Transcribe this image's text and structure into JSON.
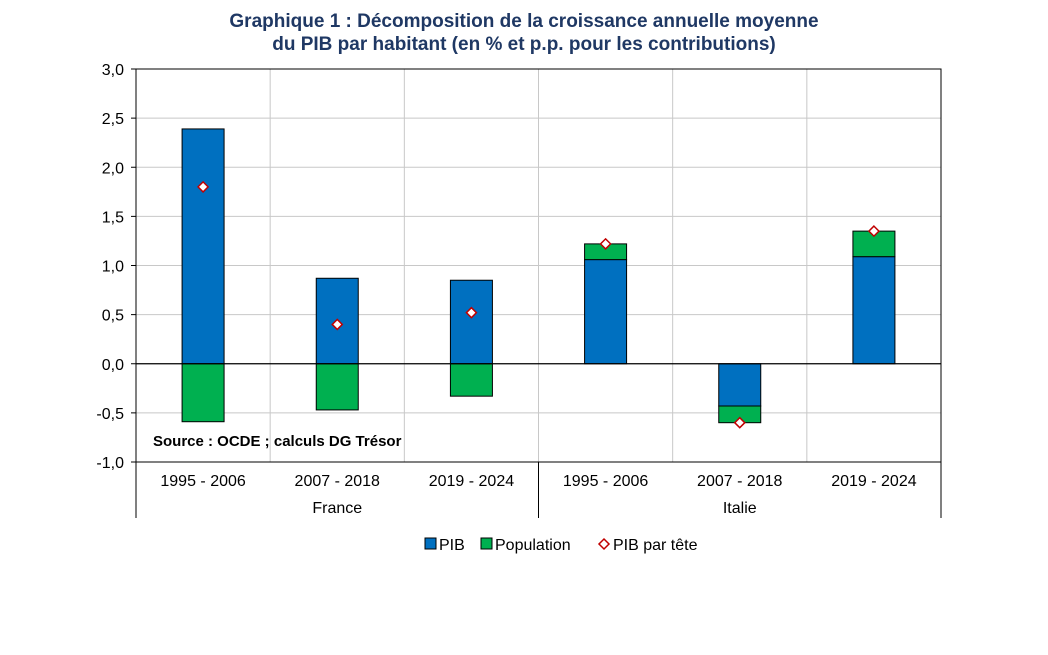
{
  "chart_data": {
    "type": "bar",
    "title_line1": "Graphique 1 : Décomposition de la croissance annuelle moyenne",
    "title_line2": "du PIB par habitant (en % et p.p. pour les contributions)",
    "groups": [
      {
        "name": "France",
        "categories": [
          "1995 - 2006",
          "2007 - 2018",
          "2019 - 2024"
        ]
      },
      {
        "name": "Italie",
        "categories": [
          "1995 - 2006",
          "2007 - 2018",
          "2019 - 2024"
        ]
      }
    ],
    "categories": [
      "1995 - 2006",
      "2007 - 2018",
      "2019 - 2024",
      "1995 - 2006",
      "2007 - 2018",
      "2019 - 2024"
    ],
    "series": [
      {
        "name": "PIB",
        "kind": "bar",
        "color": "#0070c0",
        "values": [
          2.39,
          0.87,
          0.85,
          1.06,
          -0.43,
          1.09
        ]
      },
      {
        "name": "Population",
        "kind": "bar",
        "color": "#00b050",
        "values": [
          -0.59,
          -0.47,
          -0.33,
          0.16,
          -0.17,
          0.26
        ]
      },
      {
        "name": "PIB par tête",
        "kind": "marker",
        "color": "#c00000",
        "values": [
          1.8,
          0.4,
          0.52,
          1.22,
          -0.6,
          1.35
        ]
      }
    ],
    "ylim": [
      -1.0,
      3.0
    ],
    "yticks": [
      -1.0,
      -0.5,
      0.0,
      0.5,
      1.0,
      1.5,
      2.0,
      2.5,
      3.0
    ],
    "ytick_labels": [
      "-1,0",
      "-0,5",
      "0,0",
      "0,5",
      "1,0",
      "1,5",
      "2,0",
      "2,5",
      "3,0"
    ],
    "grid": true,
    "legend_position": "bottom",
    "annotation": "Source : OCDE ; calculs DG Trésor"
  }
}
